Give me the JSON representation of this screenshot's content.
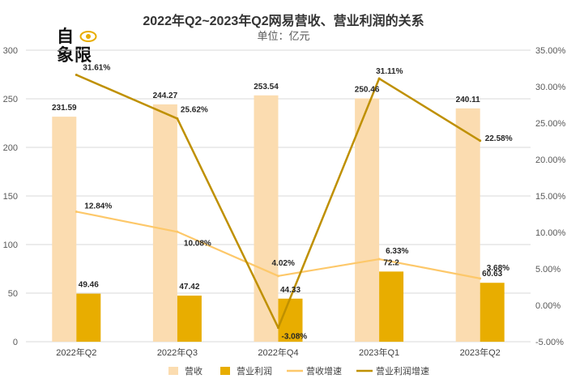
{
  "logo": {
    "line1": "自",
    "line2": "象限"
  },
  "chart_data": {
    "type": "bar",
    "title": "2022年Q2~2023年Q2网易营收、营业利润的关系",
    "subtitle": "单位：亿元",
    "categories": [
      "2022年Q2",
      "2022年Q3",
      "2022年Q4",
      "2023年Q1",
      "2023年Q2"
    ],
    "series": [
      {
        "name": "营收",
        "kind": "bar",
        "axis": "left",
        "color": "#fbdcb0",
        "values": [
          231.59,
          244.27,
          253.54,
          250.46,
          240.11
        ],
        "labels": [
          "231.59",
          "244.27",
          "253.54",
          "250.46",
          "240.11"
        ]
      },
      {
        "name": "营业利润",
        "kind": "bar",
        "axis": "left",
        "color": "#e8ad00",
        "values": [
          49.46,
          47.42,
          44.33,
          72.2,
          60.63
        ],
        "labels": [
          "49.46",
          "47.42",
          "44.33",
          "72.2",
          "60.63"
        ]
      },
      {
        "name": "营收增速",
        "kind": "line",
        "axis": "right",
        "color": "#fdc86a",
        "values": [
          12.84,
          10.08,
          4.02,
          6.33,
          3.68
        ],
        "labels": [
          "12.84%",
          "10.08%",
          "4.02%",
          "6.33%",
          "3.68%"
        ]
      },
      {
        "name": "营业利润增速",
        "kind": "line",
        "axis": "right",
        "color": "#bf9000",
        "values": [
          31.61,
          25.62,
          -3.08,
          31.11,
          22.58
        ],
        "labels": [
          "31.61%",
          "25.62%",
          "-3.08%",
          "31.11%",
          "22.58%"
        ]
      }
    ],
    "y_left": {
      "min": 0,
      "max": 300,
      "ticks": [
        "0",
        "50",
        "100",
        "150",
        "200",
        "250",
        "300"
      ]
    },
    "y_right": {
      "min": -5,
      "max": 35,
      "ticks": [
        "-5.00%",
        "0.00%",
        "5.00%",
        "10.00%",
        "15.00%",
        "20.00%",
        "25.00%",
        "30.00%",
        "35.00%"
      ]
    },
    "grid": true,
    "legend_position": "bottom"
  }
}
